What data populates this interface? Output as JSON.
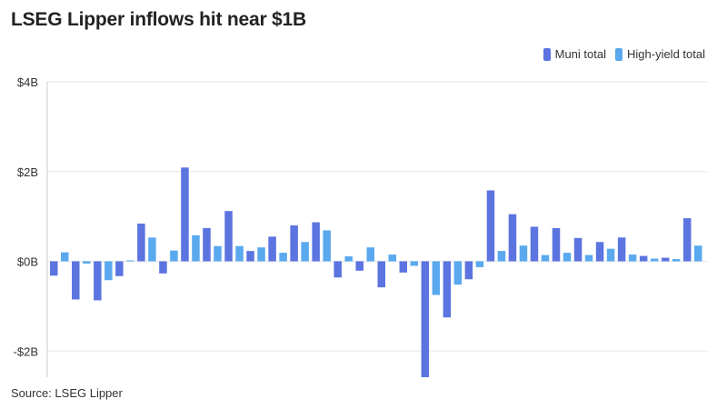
{
  "title": "LSEG Lipper inflows hit near $1B",
  "source": "Source: LSEG Lipper",
  "colors": {
    "muni": "#5b74e0",
    "high_yield": "#5aa9ef",
    "grid": "#e6e6e6",
    "axis": "#cccccc"
  },
  "chart_data": {
    "type": "bar",
    "title": "LSEG Lipper inflows hit near $1B",
    "xlabel": "",
    "ylabel": "",
    "ylim": [
      -2.6,
      4
    ],
    "yticks": [
      4,
      2,
      0,
      -2
    ],
    "ytick_labels": [
      "$4B",
      "$2B",
      "$0B",
      "-$2B"
    ],
    "grid": true,
    "legend_position": "top-right",
    "series": [
      {
        "name": "Muni total",
        "color": "#5b74e0",
        "values": [
          -0.32,
          -0.85,
          -0.87,
          -0.33,
          0.84,
          -0.27,
          2.09,
          0.74,
          1.12,
          0.23,
          0.55,
          0.8,
          0.87,
          -0.36,
          -0.21,
          -0.58,
          -0.25,
          -2.6,
          -1.25,
          -0.4,
          1.58,
          1.05,
          0.77,
          0.74,
          0.52,
          0.43,
          0.53,
          0.12,
          0.08,
          0.96
        ]
      },
      {
        "name": "High-yield total",
        "color": "#5aa9ef",
        "values": [
          0.2,
          -0.05,
          -0.42,
          0.02,
          0.53,
          0.24,
          0.58,
          0.34,
          0.34,
          0.31,
          0.19,
          0.43,
          0.69,
          0.11,
          0.31,
          0.15,
          -0.1,
          -0.75,
          -0.52,
          -0.13,
          0.23,
          0.35,
          0.14,
          0.19,
          0.14,
          0.28,
          0.15,
          0.06,
          0.05,
          0.35
        ]
      }
    ]
  }
}
